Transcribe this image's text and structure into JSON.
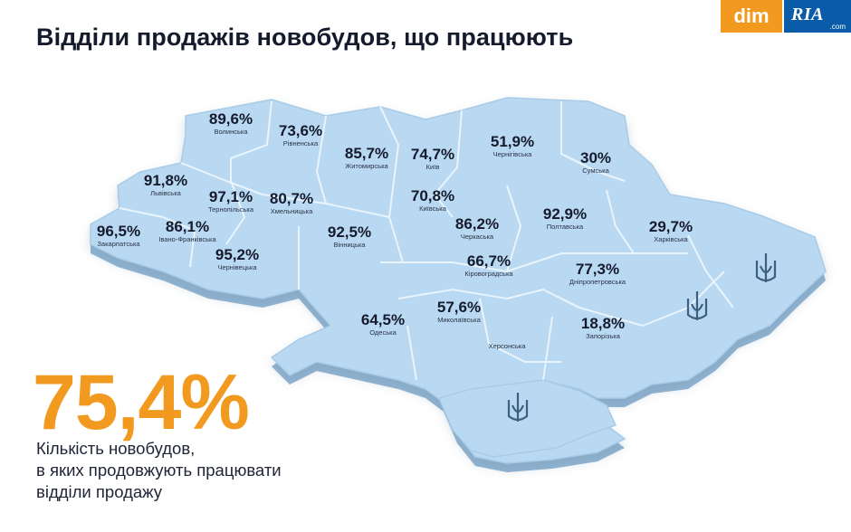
{
  "title": "Відділи продажів новобудов, що працюють",
  "logo": {
    "dim": "dim",
    "ria": "RIA",
    "ria_com": ".com"
  },
  "headline_value": "75,4%",
  "caption_lines": [
    "Кількість новобудов,",
    "в яких продовжують працювати",
    "відділи продажу"
  ],
  "colors": {
    "accent": "#f29a1f",
    "map_fill": "#b7d8f2",
    "map_side": "#8fb4d3",
    "ria_blue": "#0b5ca8"
  },
  "icons": [
    "trident-icon"
  ],
  "regions": [
    {
      "id": "volyn",
      "value": "89,6%",
      "name": "Волинська"
    },
    {
      "id": "rivne",
      "value": "73,6%",
      "name": "Рівненська"
    },
    {
      "id": "zhytomyr",
      "value": "85,7%",
      "name": "Житомирська"
    },
    {
      "id": "kyiv-city",
      "value": "74,7%",
      "name": "Київ"
    },
    {
      "id": "chernihiv",
      "value": "51,9%",
      "name": "Чернігівська"
    },
    {
      "id": "sumy",
      "value": "30%",
      "name": "Сумська"
    },
    {
      "id": "lviv",
      "value": "91,8%",
      "name": "Львівська"
    },
    {
      "id": "ternopil",
      "value": "97,1%",
      "name": "Тернопільська"
    },
    {
      "id": "khmelnytskyi",
      "value": "80,7%",
      "name": "Хмельницька"
    },
    {
      "id": "kyiv-oblast",
      "value": "70,8%",
      "name": "Київська"
    },
    {
      "id": "poltava",
      "value": "92,9%",
      "name": "Полтавська"
    },
    {
      "id": "kharkiv",
      "value": "29,7%",
      "name": "Харківська"
    },
    {
      "id": "zakarpattia",
      "value": "96,5%",
      "name": "Закарпатська"
    },
    {
      "id": "ivano-frankivsk",
      "value": "86,1%",
      "name": "Івано-Франківська"
    },
    {
      "id": "vinnytsia",
      "value": "92,5%",
      "name": "Вінницька"
    },
    {
      "id": "cherkasy",
      "value": "86,2%",
      "name": "Черкаська"
    },
    {
      "id": "chernivtsi",
      "value": "95,2%",
      "name": "Чернівецька"
    },
    {
      "id": "kirovohrad",
      "value": "66,7%",
      "name": "Кіровоградська"
    },
    {
      "id": "dnipro",
      "value": "77,3%",
      "name": "Дніпропетровська"
    },
    {
      "id": "odesa",
      "value": "64,5%",
      "name": "Одеська"
    },
    {
      "id": "mykolaiv",
      "value": "57,6%",
      "name": "Миколаївська"
    },
    {
      "id": "zaporizhzhia",
      "value": "18,8%",
      "name": "Запорізька"
    },
    {
      "id": "kherson",
      "value": "",
      "name": "Херсонська"
    }
  ]
}
